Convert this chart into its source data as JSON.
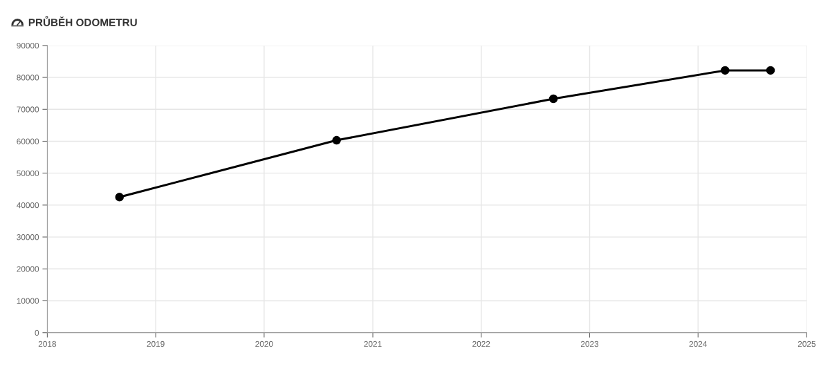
{
  "chart_data": {
    "type": "line",
    "title": "PRŮBĚH ODOMETRU",
    "x": [
      "2018-09",
      "2020-09",
      "2022-09",
      "2024-04",
      "2024-09"
    ],
    "series": [
      {
        "color": "#000000",
        "values": [
          42500,
          60300,
          73300,
          82200,
          82200
        ]
      }
    ],
    "xlim": [
      "2018",
      "2025"
    ],
    "xticks": [
      "2018",
      "2019",
      "2020",
      "2021",
      "2022",
      "2023",
      "2024",
      "2025"
    ],
    "ylim": [
      0,
      90000
    ],
    "yticks": [
      0,
      10000,
      20000,
      30000,
      40000,
      50000,
      60000,
      70000,
      80000,
      90000
    ],
    "grid": true,
    "marker": "circle",
    "line_style": "solid"
  }
}
